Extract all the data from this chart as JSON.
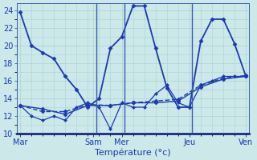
{
  "xlabel": "Température (°c)",
  "background_color": "#cce8e8",
  "grid_color": "#a8d4d4",
  "line_color": "#1a3ab0",
  "spine_color": "#3a5ab0",
  "tick_color": "#1a3ab0",
  "ylim": [
    10,
    24.8
  ],
  "yticks": [
    10,
    12,
    14,
    16,
    18,
    20,
    22,
    24
  ],
  "xlim": [
    -0.3,
    20.3
  ],
  "x_day_labels": [
    "Mar",
    "Sam",
    "Mer",
    "Jeu",
    "Ven"
  ],
  "x_day_positions": [
    0,
    6.5,
    9,
    15,
    20
  ],
  "series": [
    {
      "x": [
        0,
        1,
        2,
        3,
        4,
        5,
        6,
        7,
        8,
        9,
        10,
        11,
        12,
        13,
        14,
        15,
        16,
        17,
        18,
        19,
        20
      ],
      "y": [
        23.8,
        20.0,
        19.2,
        18.5,
        16.5,
        15.0,
        13.0,
        14.0,
        19.7,
        21.0,
        24.5,
        24.5,
        19.7,
        15.2,
        13.0,
        13.0,
        20.5,
        23.0,
        23.0,
        20.2,
        16.5
      ],
      "style": "-",
      "marker": "D",
      "markersize": 2.5,
      "linewidth": 1.3,
      "dashes": []
    },
    {
      "x": [
        0,
        2,
        4,
        6,
        8,
        10,
        12,
        14,
        16,
        18,
        20
      ],
      "y": [
        13.2,
        12.8,
        12.2,
        13.2,
        13.2,
        13.5,
        13.5,
        13.7,
        15.3,
        16.2,
        16.5
      ],
      "style": "-",
      "marker": "D",
      "markersize": 2.5,
      "linewidth": 1.0,
      "dashes": []
    },
    {
      "x": [
        0,
        2,
        4,
        6,
        8,
        10,
        12,
        14,
        16,
        18,
        20
      ],
      "y": [
        13.2,
        12.5,
        12.5,
        13.3,
        13.2,
        13.5,
        13.7,
        13.9,
        15.5,
        16.3,
        16.6
      ],
      "style": "--",
      "marker": "D",
      "markersize": 2.5,
      "linewidth": 1.0,
      "dashes": [
        4,
        2
      ]
    },
    {
      "x": [
        0,
        1,
        2,
        3,
        4,
        5,
        6,
        7,
        8,
        9,
        10,
        11,
        12,
        13,
        14,
        15,
        16,
        17,
        18,
        19,
        20
      ],
      "y": [
        13.2,
        12.0,
        11.5,
        12.0,
        11.5,
        13.0,
        13.5,
        13.0,
        10.5,
        13.5,
        13.0,
        13.0,
        14.5,
        15.5,
        13.5,
        13.0,
        15.5,
        16.0,
        16.5,
        16.5,
        16.5
      ],
      "style": "-",
      "marker": "D",
      "markersize": 2.0,
      "linewidth": 0.9,
      "dashes": []
    }
  ],
  "vline_positions": [
    6.75,
    9.25,
    15.25
  ],
  "vline_color": "#3a5ab0",
  "xlabel_fontsize": 8,
  "tick_fontsize": 7
}
